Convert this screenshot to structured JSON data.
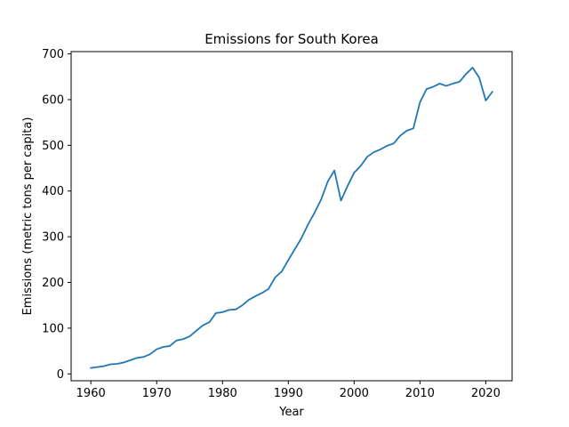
{
  "chart_data": {
    "type": "line",
    "title": "Emissions for South Korea",
    "xlabel": "Year",
    "ylabel": "Emissions (metric tons per capita)",
    "xlim": [
      1957,
      2024
    ],
    "ylim": [
      -15,
      705
    ],
    "xticks": [
      1960,
      1970,
      1980,
      1990,
      2000,
      2010,
      2020
    ],
    "yticks": [
      0,
      100,
      200,
      300,
      400,
      500,
      600,
      700
    ],
    "grid": false,
    "legend": "none",
    "series": [
      {
        "color": "#1f77b4",
        "x": [
          1960,
          1961,
          1962,
          1963,
          1964,
          1965,
          1966,
          1967,
          1968,
          1969,
          1970,
          1971,
          1972,
          1973,
          1974,
          1975,
          1976,
          1977,
          1978,
          1979,
          1980,
          1981,
          1982,
          1983,
          1984,
          1985,
          1986,
          1987,
          1988,
          1989,
          1990,
          1991,
          1992,
          1993,
          1994,
          1995,
          1996,
          1997,
          1998,
          1999,
          2000,
          2001,
          2002,
          2003,
          2004,
          2005,
          2006,
          2007,
          2008,
          2009,
          2010,
          2011,
          2012,
          2013,
          2014,
          2015,
          2016,
          2017,
          2018,
          2019,
          2020,
          2021
        ],
        "y": [
          13,
          15,
          17,
          21,
          22,
          25,
          30,
          35,
          37,
          43,
          54,
          59,
          61,
          73,
          76,
          82,
          94,
          106,
          113,
          133,
          135,
          140,
          141,
          150,
          162,
          170,
          177,
          186,
          211,
          224,
          249,
          273,
          297,
          327,
          353,
          382,
          421,
          445,
          379,
          411,
          440,
          455,
          475,
          485,
          491,
          499,
          504,
          521,
          532,
          537,
          594,
          623,
          628,
          635,
          630,
          635,
          639,
          656,
          670,
          648,
          598,
          617
        ]
      }
    ]
  }
}
